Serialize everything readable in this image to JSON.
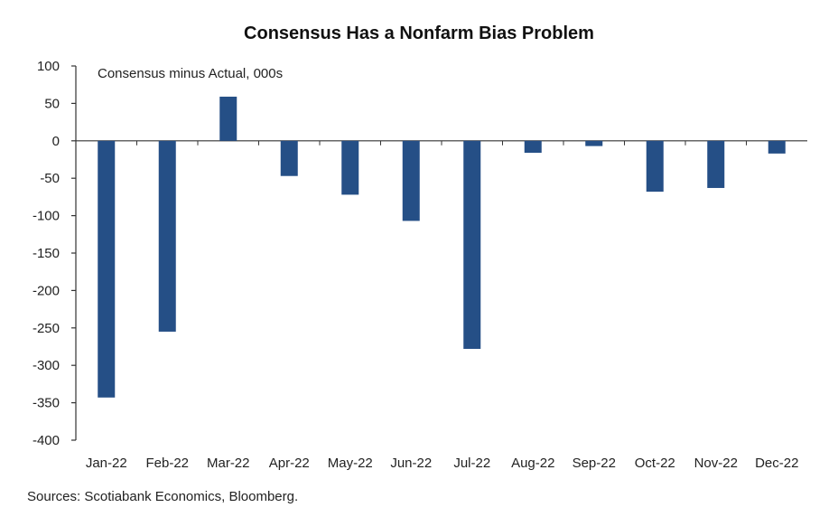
{
  "chart_data": {
    "type": "bar",
    "title": "Consensus Has a Nonfarm Bias Problem",
    "annotation": "Consensus minus Actual, 000s",
    "source": "Sources: Scotiabank Economics, Bloomberg.",
    "categories": [
      "Jan-22",
      "Feb-22",
      "Mar-22",
      "Apr-22",
      "May-22",
      "Jun-22",
      "Jul-22",
      "Aug-22",
      "Sep-22",
      "Oct-22",
      "Nov-22",
      "Dec-22"
    ],
    "values": [
      -343,
      -255,
      59,
      -47,
      -72,
      -107,
      -278,
      -16,
      -7,
      -68,
      -63,
      -17
    ],
    "ylim": [
      -400,
      100
    ],
    "yticks": [
      100,
      50,
      0,
      -50,
      -100,
      -150,
      -200,
      -250,
      -300,
      -350,
      -400
    ],
    "bar_color": "#254f86",
    "grid": false
  }
}
